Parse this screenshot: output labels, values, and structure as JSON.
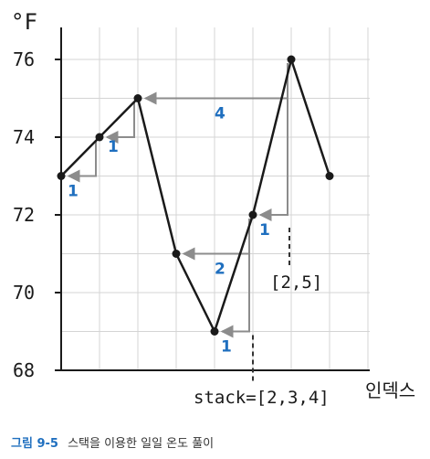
{
  "chart_data": {
    "type": "line",
    "ylabel": "°F",
    "xlabel": "인덱스",
    "ylim": [
      68,
      77
    ],
    "y_ticks": [
      "68",
      "70",
      "72",
      "74",
      "76"
    ],
    "x": [
      0,
      1,
      2,
      3,
      4,
      5,
      6,
      7
    ],
    "series": [
      {
        "values": [
          73,
          74,
          75,
          71,
          69,
          72,
          76,
          73
        ]
      }
    ],
    "annotations": [
      {
        "text": "1",
        "from": 0,
        "to": 1
      },
      {
        "text": "1",
        "from": 1,
        "to": 2
      },
      {
        "text": "4",
        "from": 2,
        "to": 6
      },
      {
        "text": "2",
        "from": 3,
        "to": 5
      },
      {
        "text": "1",
        "from": 4,
        "to": 5
      },
      {
        "text": "1",
        "from": 5,
        "to": 6
      }
    ],
    "stack_labels": [
      "[2,5]",
      "stack=[2,3,4]"
    ],
    "grid": true
  },
  "caption": {
    "figure": "그림 9-5",
    "text": "스택을 이용한 일일 온도 풀이"
  },
  "colors": {
    "line": "#1a1a1a",
    "arrow": "#8c8c8c",
    "grid": "#d4d4d4",
    "label": "#1f6fbf"
  }
}
